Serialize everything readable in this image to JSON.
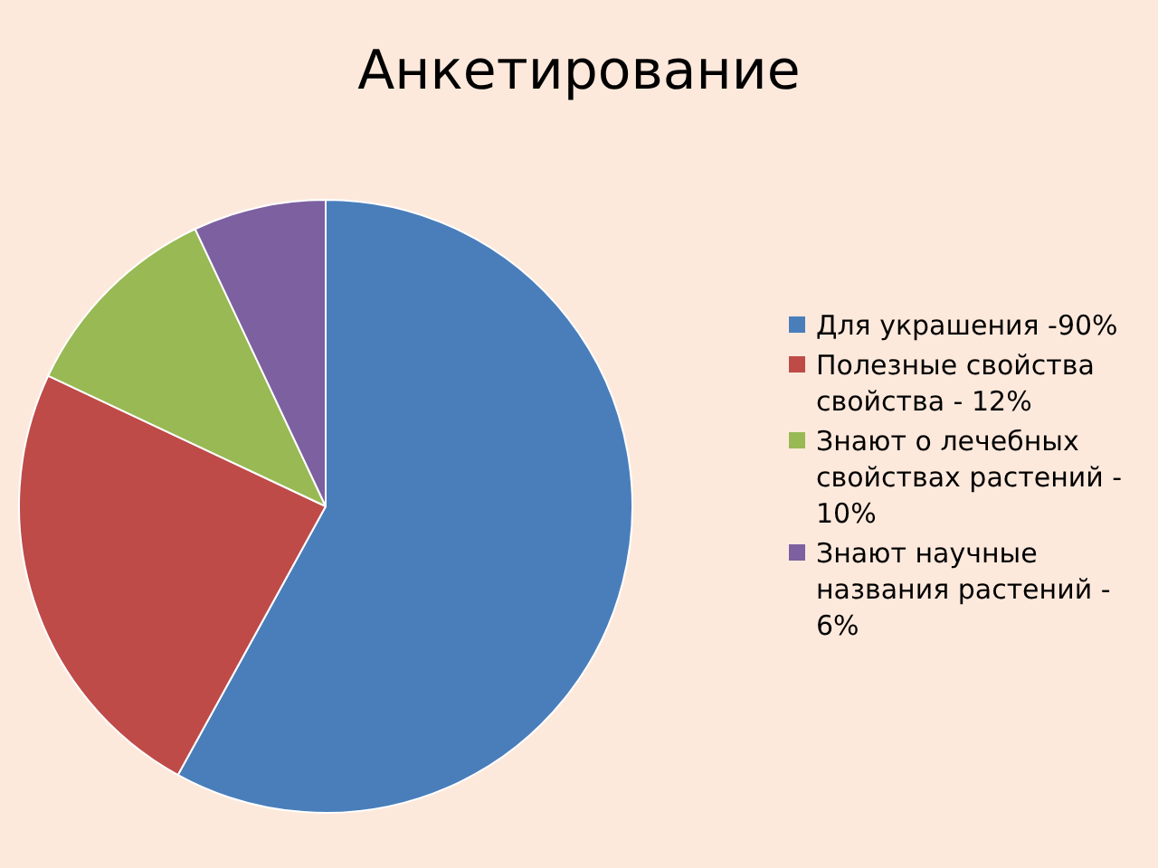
{
  "chart_data": {
    "type": "pie",
    "title": "Анкетирование",
    "categories": [
      "Для украшения -90%",
      "Полезные свойства свойства - 12%",
      "Знают о лечебных свойствах растений - 10%",
      "Знают научные названия растений - 6%"
    ],
    "values": [
      58,
      24,
      11,
      7
    ],
    "colors": [
      "#4a7ebb",
      "#be4b48",
      "#98b954",
      "#7d60a0"
    ],
    "legend": "right"
  }
}
